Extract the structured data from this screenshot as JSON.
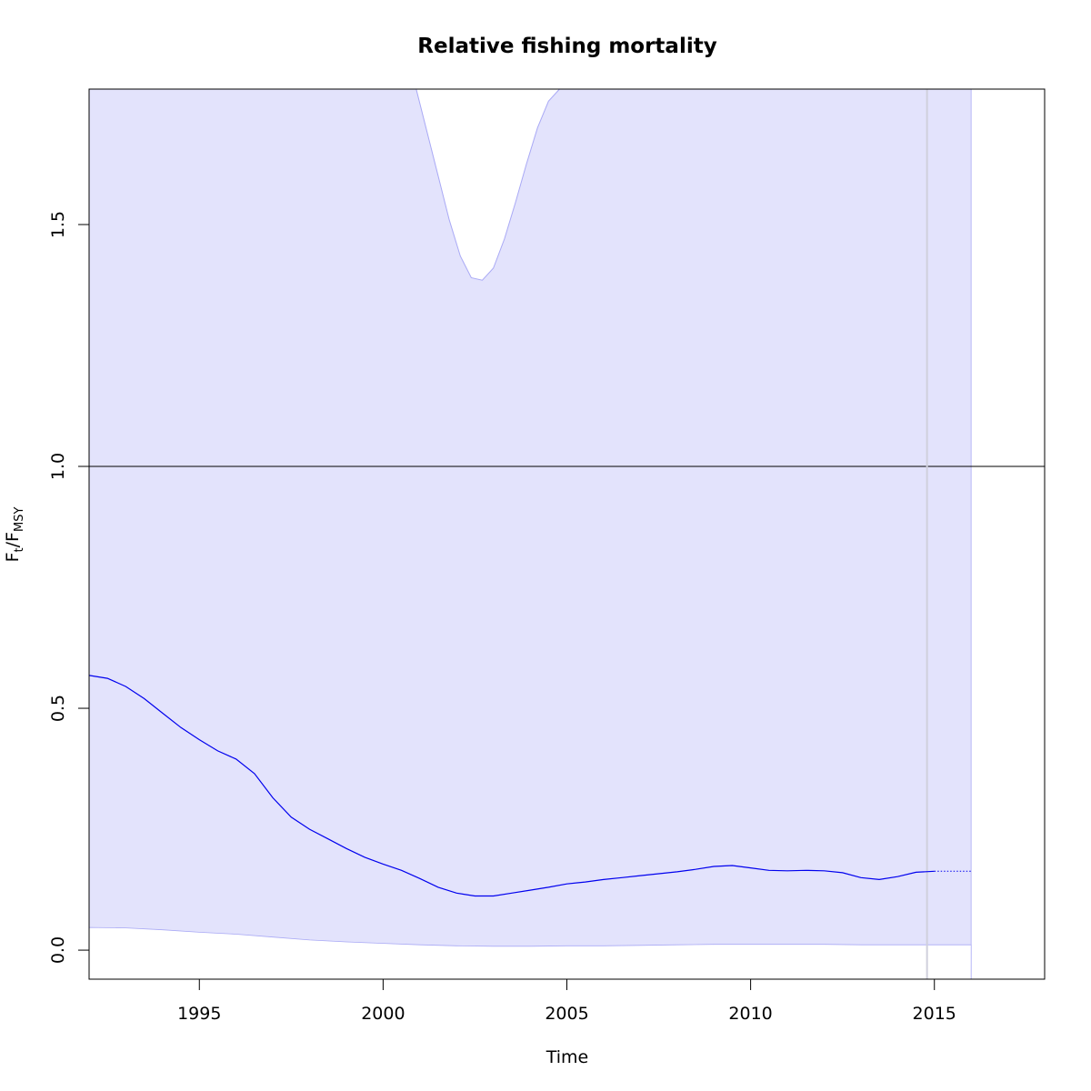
{
  "chart_data": {
    "type": "line",
    "title": "Relative fishing mortality",
    "xlabel": "Time",
    "ylabel_main": "F",
    "ylabel_sub": "t",
    "ylabel_sep": "/F",
    "ylabel_sub2": "MSY",
    "xlim": [
      1992,
      2018
    ],
    "ylim": [
      -0.06,
      1.78
    ],
    "x_ticks": [
      1995,
      2000,
      2005,
      2010,
      2015
    ],
    "y_ticks": [
      0.0,
      0.5,
      1.0,
      1.5
    ],
    "y_tick_labels": [
      "0.0",
      "0.5",
      "1.0",
      "1.5"
    ],
    "reference_line_y": 1.0,
    "last_observation_x": 2014.8,
    "grid": false,
    "colors": {
      "estimate": "#0000ee",
      "band_fill": "#e3e3fc",
      "band_edge": "#a9a9f5",
      "reference": "#000000",
      "vline": "#d0d0dc"
    },
    "estimate": {
      "x": [
        1992,
        1992.5,
        1993,
        1993.5,
        1994,
        1994.5,
        1995,
        1995.5,
        1996,
        1996.5,
        1997,
        1997.5,
        1998,
        1998.5,
        1999,
        1999.5,
        2000,
        2000.5,
        2001,
        2001.5,
        2002,
        2002.5,
        2003,
        2003.5,
        2004,
        2004.5,
        2005,
        2005.5,
        2006,
        2006.5,
        2007,
        2007.5,
        2008,
        2008.5,
        2009,
        2009.5,
        2010,
        2010.5,
        2011,
        2011.5,
        2012,
        2012.5,
        2013,
        2013.5,
        2014,
        2014.5,
        2015
      ],
      "y": [
        0.568,
        0.562,
        0.545,
        0.52,
        0.49,
        0.46,
        0.435,
        0.412,
        0.395,
        0.365,
        0.315,
        0.275,
        0.25,
        0.23,
        0.21,
        0.192,
        0.178,
        0.165,
        0.148,
        0.13,
        0.118,
        0.112,
        0.112,
        0.118,
        0.124,
        0.13,
        0.137,
        0.141,
        0.146,
        0.15,
        0.154,
        0.158,
        0.162,
        0.167,
        0.173,
        0.175,
        0.17,
        0.165,
        0.164,
        0.165,
        0.164,
        0.16,
        0.15,
        0.146,
        0.152,
        0.161,
        0.163
      ]
    },
    "prediction": {
      "x": [
        2015,
        2016
      ],
      "y": [
        0.163,
        0.163
      ]
    },
    "upper_band": {
      "x": [
        2000.9,
        2001.2,
        2001.5,
        2001.8,
        2002.1,
        2002.4,
        2002.7,
        2003.0,
        2003.3,
        2003.6,
        2003.9,
        2004.2,
        2004.5,
        2004.8
      ],
      "y": [
        1.78,
        1.69,
        1.6,
        1.51,
        1.435,
        1.39,
        1.385,
        1.41,
        1.47,
        1.545,
        1.625,
        1.7,
        1.755,
        1.78
      ]
    },
    "lower_band": {
      "x": [
        1992,
        1993,
        1994,
        1995,
        1996,
        1997,
        1998,
        1999,
        2000,
        2001,
        2002,
        2003,
        2004,
        2005,
        2006,
        2007,
        2008,
        2009,
        2010,
        2011,
        2012,
        2013,
        2014,
        2015,
        2016
      ],
      "y": [
        0.047,
        0.046,
        0.042,
        0.037,
        0.033,
        0.027,
        0.021,
        0.017,
        0.014,
        0.011,
        0.009,
        0.008,
        0.008,
        0.009,
        0.009,
        0.01,
        0.011,
        0.012,
        0.012,
        0.012,
        0.012,
        0.011,
        0.011,
        0.011,
        0.011
      ]
    },
    "band_xlim": [
      1992,
      2016
    ]
  }
}
